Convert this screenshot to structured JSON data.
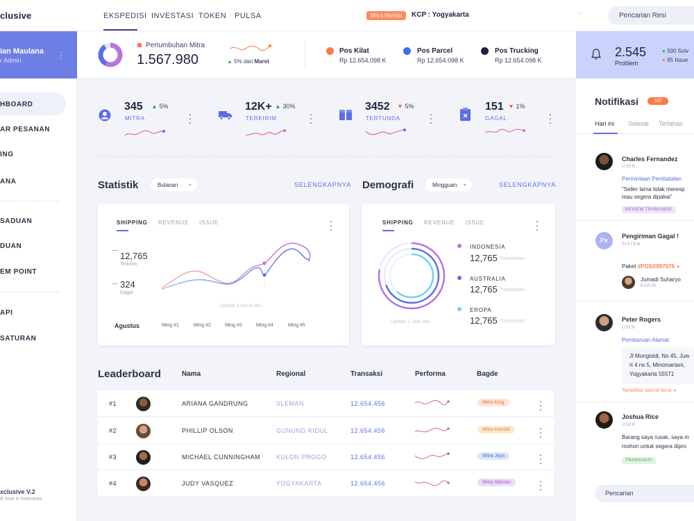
{
  "brand": "clusive",
  "topnav": {
    "tabs": [
      "EKSPEDISI",
      "INVESTASI",
      "TOKEN",
      "PULSA"
    ],
    "badge": "Mitra Handal",
    "kcp": "KCP : Yogyakarta",
    "search_placeholder": "Pencarian Resi"
  },
  "profile": {
    "name": "ian Maulana",
    "role": "r Admin"
  },
  "sidebar": {
    "items": [
      "HBOARD",
      "AR PESANAN",
      "ING",
      "ANA",
      "SADUAN",
      "DUAN",
      "EM POINT",
      "API",
      "SATURAN"
    ],
    "footer_title": "xclusive V.2",
    "footer_sub": "th love in Indonesia"
  },
  "summary": {
    "growth_label": "Pertumbuhan Mitra",
    "growth_value": "1.567.980",
    "growth_change": "5% dari",
    "growth_month": "Maret",
    "pos": [
      {
        "name": "Pos Kilat",
        "value": "Rp 12.654.098 K",
        "color": "#ff7a45"
      },
      {
        "name": "Pos Parcel",
        "value": "Rp 12.654.098 K",
        "color": "#3d6ff2"
      },
      {
        "name": "Pos Trucking",
        "value": "Rp 12.654.098 K",
        "color": "#1e2340"
      }
    ]
  },
  "problem": {
    "value": "2.545",
    "label": "Problem",
    "solved": "500 Solv",
    "issue": "95 Issue"
  },
  "stats": [
    {
      "value": "345",
      "change": "5%",
      "dir": "up",
      "label": "MITRA"
    },
    {
      "value": "12K+",
      "change": "30%",
      "dir": "up",
      "label": "TERKIRIM"
    },
    {
      "value": "3452",
      "change": "5%",
      "dir": "down",
      "label": "TERTUNDA"
    },
    {
      "value": "151",
      "change": "1%",
      "dir": "down",
      "label": "GAGAL"
    }
  ],
  "statistik": {
    "title": "Statistik",
    "period": "Bulanan",
    "more": "SELENGKAPNYA",
    "tabs": [
      "SHIPPING",
      "REVENUE",
      "ISSUE"
    ],
    "terkirim_value": "12,765",
    "terkirim_label": "Terkirim",
    "gagal_value": "324",
    "gagal_label": "Gagal",
    "updated": "Update 2 menit lalu",
    "month": "Agustus",
    "weeks": [
      "Ming #1",
      "Ming #2",
      "Ming #3",
      "Ming #4",
      "Ming #5"
    ]
  },
  "demografi": {
    "title": "Demografi",
    "period": "Mingguan",
    "more": "SELENGKAPNYA",
    "tabs": [
      "SHIPPING",
      "REVENUE",
      "ISSUE"
    ],
    "updated": "Update 1 Jam lalu",
    "regions": [
      {
        "name": "INDONESIA",
        "value": "12,765",
        "unit": "Transaction",
        "color": "#b96ee0"
      },
      {
        "name": "AUSTRALIA",
        "value": "12,765",
        "unit": "Transaction",
        "color": "#5b6ee8"
      },
      {
        "name": "EROPA",
        "value": "12,765",
        "unit": "Transaction",
        "color": "#6fd3f2"
      }
    ]
  },
  "leaderboard": {
    "title": "Leaderboard",
    "headers": [
      "Nama",
      "Regional",
      "Transaksi",
      "Performa",
      "Bagde"
    ],
    "rows": [
      {
        "rank": "#1",
        "name": "ARIANA GANDRUNG",
        "region": "SLEMAN",
        "amount": "12.654.456",
        "badge": "Mitra King",
        "badge_bg": "#ffe3d6",
        "badge_fg": "#e2744a"
      },
      {
        "rank": "#2",
        "name": "PHILLIP OLSON",
        "region": "GUNUNG KIDUL",
        "amount": "12.654.456",
        "badge": "Mitra Handal",
        "badge_bg": "#ffe9cf",
        "badge_fg": "#d98a3a"
      },
      {
        "rank": "#3",
        "name": "MICHAEL CUNNINGHAM",
        "region": "KULON PROGO",
        "amount": "12.654.456",
        "badge": "Mitra Jaya",
        "badge_bg": "#dce8fb",
        "badge_fg": "#4b6fc2"
      },
      {
        "rank": "#4",
        "name": "JUDY VASQUEZ",
        "region": "YOGYAKARTA",
        "amount": "12.654.456",
        "badge": "Mitra Idaman",
        "badge_bg": "#eddcf8",
        "badge_fg": "#9a5cc2"
      }
    ]
  },
  "notifications": {
    "title": "Notifikasi",
    "count": "102",
    "tabs": [
      "Hari ini",
      "Selesai",
      "Tertahan"
    ],
    "items": [
      {
        "name": "Charles Fernandez",
        "role": "USER",
        "subject": "Permintaan Pembatalan",
        "body1": "“Seller lama tidak meresp",
        "body2": "mau segera dipakai”",
        "tag": "REVIEW TRANSAKSI"
      },
      {
        "initials": "Px",
        "name": "Pengiriman Gagal !",
        "role": "SISTEM",
        "paket": "Paket",
        "code": "#POSX997076",
        "courier": "Jumadi Suharyo",
        "courier_role": "KURIR"
      },
      {
        "name": "Peter Rogers",
        "role": "USER",
        "subject": "Pembaruan Alamat",
        "addr1": "Jl Mongisidi, No 45, Juw",
        "addr2": "rt 4 rw 5, Minomartani,",
        "addr3": "Yogyakarta 55571",
        "link": "Tampilkan alamat lama"
      },
      {
        "name": "Joshua Rice",
        "role": "USER",
        "body1": "Barang saya rusak, saya m",
        "body2": "mohon untuk segera dipro",
        "tag": "TRANSAKSI"
      }
    ],
    "search_placeholder": "Pencarian"
  }
}
